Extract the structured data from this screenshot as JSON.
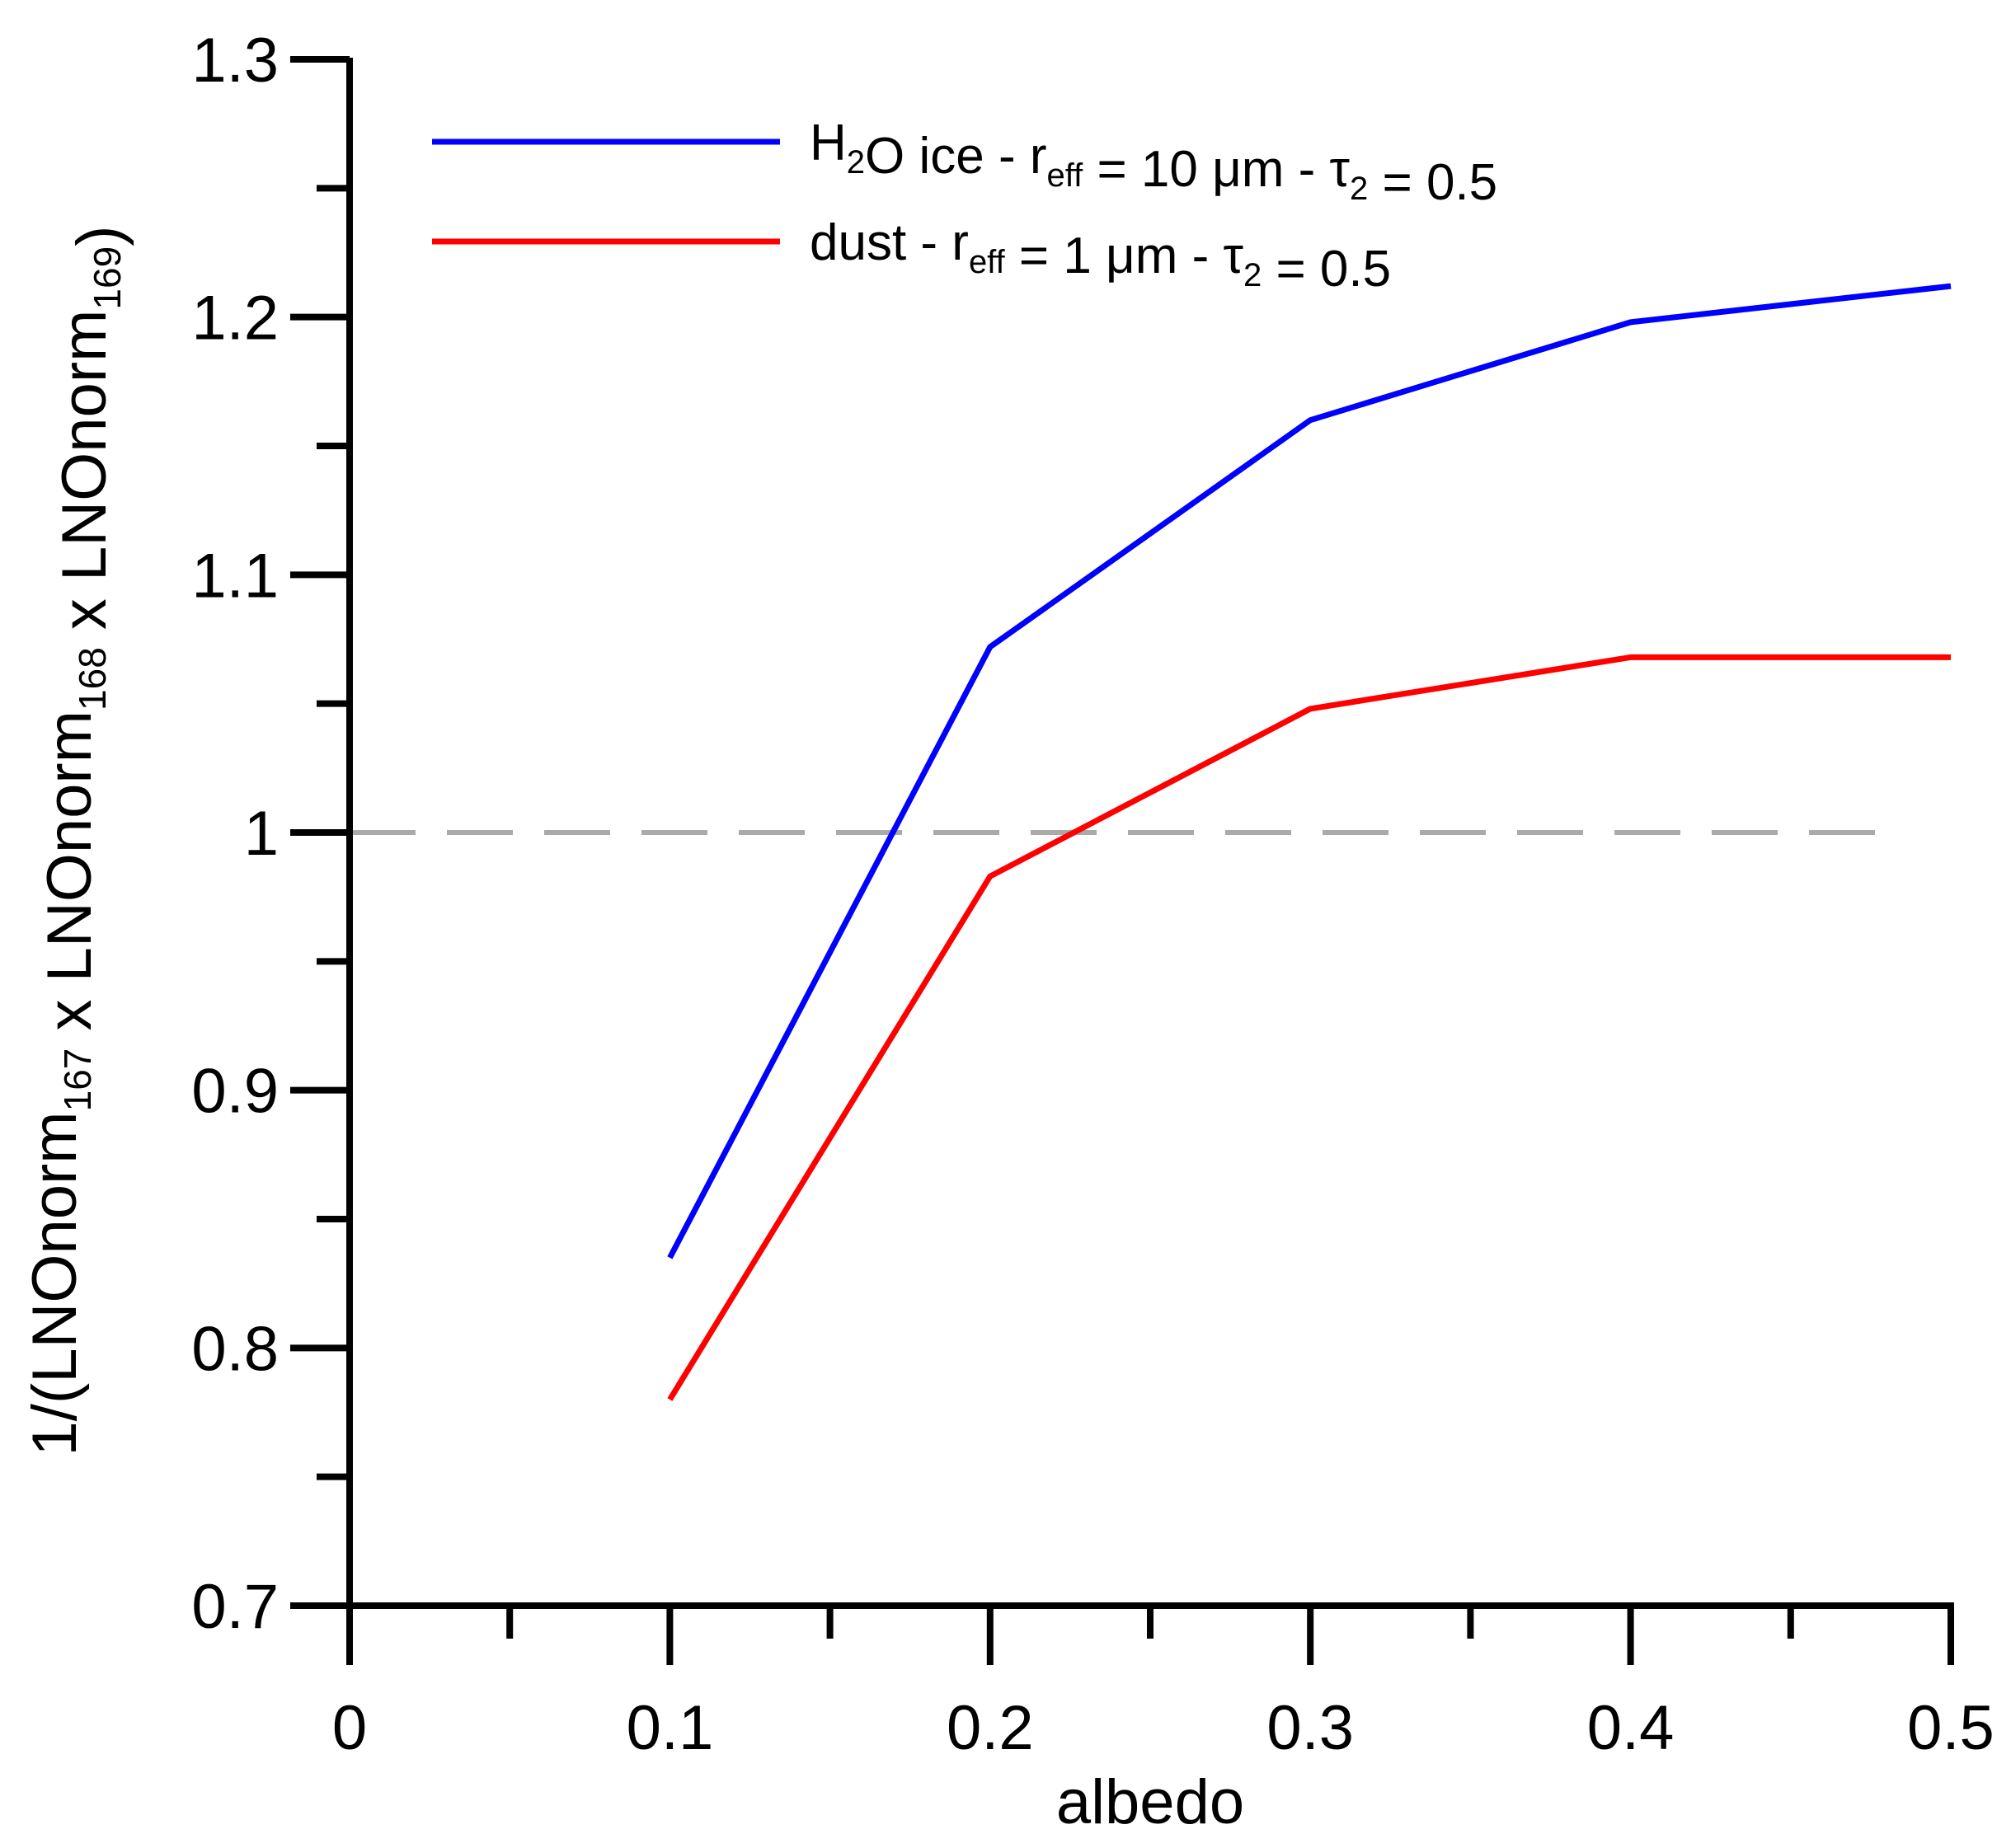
{
  "chart_data": {
    "type": "line",
    "title": "",
    "xlabel": "albedo",
    "ylabel": {
      "parts": [
        {
          "text": "1/(LNOnorm",
          "sub": "167"
        },
        {
          "text": " x LNOnorm",
          "sub": "168"
        },
        {
          "text": " x LNOnorm",
          "sub": "169"
        },
        {
          "text": ")",
          "sub": ""
        }
      ]
    },
    "xlim": [
      0,
      0.5
    ],
    "ylim": [
      0.7,
      1.3
    ],
    "xticks": [
      0,
      0.1,
      0.2,
      0.3,
      0.4,
      0.5
    ],
    "xtick_labels": [
      "0",
      "0.1",
      "0.2",
      "0.3",
      "0.4",
      "0.5"
    ],
    "yticks": [
      0.7,
      0.8,
      0.9,
      1.0,
      1.1,
      1.2,
      1.3
    ],
    "ytick_labels": [
      "0.7",
      "0.8",
      "0.9",
      "1",
      "1.1",
      "1.2",
      "1.3"
    ],
    "x_minor_step": 0.05,
    "y_minor_step": 0.05,
    "grid": false,
    "legend_position": "top-left",
    "reference_line": {
      "y": 1.0,
      "style": "dashed",
      "color": "#aaaaaa",
      "x_range": [
        0,
        0.48
      ]
    },
    "series": [
      {
        "name": "H2O ice - reff = 10 µm - τ2 = 0.5",
        "color": "#0000ff",
        "x": [
          0.1,
          0.2,
          0.3,
          0.4,
          0.5
        ],
        "y": [
          0.835,
          1.072,
          1.16,
          1.198,
          1.212
        ],
        "legend_parts": [
          {
            "text": "H",
            "sub": ""
          },
          {
            "text": "",
            "sub": "2"
          },
          {
            "text": "O ice - r",
            "sub": ""
          },
          {
            "text": "",
            "sub": "eff"
          },
          {
            "text": " = 10 μm - τ",
            "sub": ""
          },
          {
            "text": "",
            "sub": "2"
          },
          {
            "text": " = 0.5",
            "sub": ""
          }
        ]
      },
      {
        "name": "dust - reff = 1 µm - τ2 = 0.5",
        "color": "#ff0000",
        "x": [
          0.1,
          0.2,
          0.3,
          0.4,
          0.5
        ],
        "y": [
          0.78,
          0.983,
          1.048,
          1.068,
          1.068
        ],
        "legend_parts": [
          {
            "text": "dust - r",
            "sub": ""
          },
          {
            "text": "",
            "sub": "eff"
          },
          {
            "text": " = 1 μm - τ",
            "sub": ""
          },
          {
            "text": "",
            "sub": "2"
          },
          {
            "text": " = 0.5",
            "sub": ""
          }
        ]
      }
    ]
  }
}
